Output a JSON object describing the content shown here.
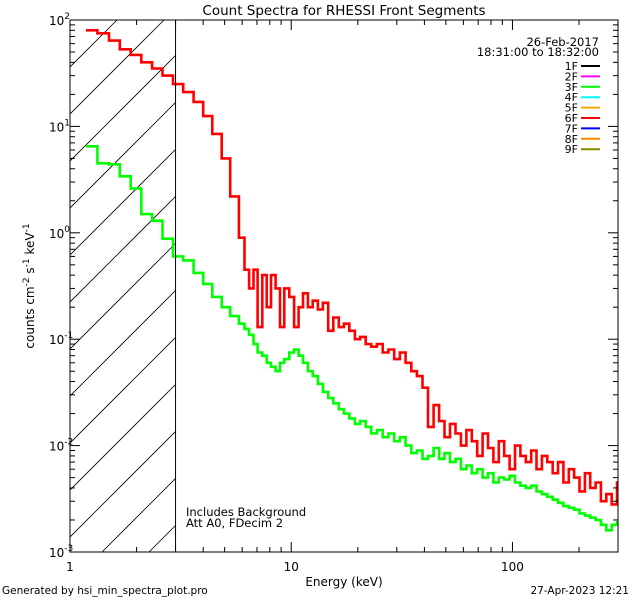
{
  "chart_data": {
    "type": "line",
    "title": "Count Spectra for RHESSI Front Segments",
    "xlabel": "Energy (keV)",
    "ylabel_parts": [
      "counts cm",
      "-2",
      " s",
      "-1",
      " keV",
      "-1"
    ],
    "xscale": "log",
    "yscale": "log",
    "xlim": [
      1,
      300
    ],
    "ylim": [
      0.001,
      100
    ],
    "x_ticks": [
      {
        "v": 1,
        "label": "1"
      },
      {
        "v": 10,
        "label": "10"
      },
      {
        "v": 100,
        "label": "100"
      }
    ],
    "y_ticks": [
      {
        "v": 0.001,
        "base": "10",
        "exp": "-3"
      },
      {
        "v": 0.01,
        "base": "10",
        "exp": "-2"
      },
      {
        "v": 0.1,
        "base": "10",
        "exp": "-1"
      },
      {
        "v": 1,
        "base": "10",
        "exp": "0"
      },
      {
        "v": 10,
        "base": "10",
        "exp": "1"
      },
      {
        "v": 100,
        "base": "10",
        "exp": "2"
      }
    ],
    "date": "26-Feb-2017",
    "time_range": "18:31:00 to 18:32:00",
    "annotations": [
      "Includes Background",
      "Att A0, FDecim 2"
    ],
    "threshold_energy": 3,
    "hatch_range": [
      1,
      3
    ],
    "legend": [
      {
        "label": "1F",
        "color": "#000000"
      },
      {
        "label": "2F",
        "color": "#ff00ff"
      },
      {
        "label": "3F",
        "color": "#00ff00"
      },
      {
        "label": "4F",
        "color": "#00ffff"
      },
      {
        "label": "5F",
        "color": "#ffaa00"
      },
      {
        "label": "6F",
        "color": "#ff0000"
      },
      {
        "label": "7F",
        "color": "#0000ff"
      },
      {
        "label": "8F",
        "color": "#ff8800"
      },
      {
        "label": "9F",
        "color": "#888800"
      }
    ],
    "series": [
      {
        "name": "6F",
        "color": "#ff0000",
        "steps": [
          [
            1.18,
            80
          ],
          [
            1.33,
            75
          ],
          [
            1.5,
            64
          ],
          [
            1.68,
            53
          ],
          [
            1.88,
            47
          ],
          [
            2.1,
            40
          ],
          [
            2.35,
            35
          ],
          [
            2.62,
            30
          ],
          [
            2.92,
            25
          ],
          [
            3.25,
            21
          ],
          [
            3.62,
            17
          ],
          [
            4.0,
            12.5
          ],
          [
            4.4,
            8.5
          ],
          [
            4.85,
            5
          ],
          [
            5.3,
            2.2
          ],
          [
            5.8,
            0.9
          ],
          [
            6.15,
            0.45
          ],
          [
            6.45,
            0.3
          ],
          [
            6.75,
            0.45
          ],
          [
            7.05,
            0.13
          ],
          [
            7.4,
            0.4
          ],
          [
            7.75,
            0.2
          ],
          [
            8.1,
            0.4
          ],
          [
            8.5,
            0.3
          ],
          [
            8.9,
            0.13
          ],
          [
            9.3,
            0.3
          ],
          [
            9.8,
            0.25
          ],
          [
            10.3,
            0.13
          ],
          [
            10.8,
            0.2
          ],
          [
            11.3,
            0.27
          ],
          [
            11.9,
            0.2
          ],
          [
            12.5,
            0.23
          ],
          [
            13.2,
            0.19
          ],
          [
            13.9,
            0.22
          ],
          [
            14.7,
            0.12
          ],
          [
            15.5,
            0.16
          ],
          [
            16.4,
            0.13
          ],
          [
            17.3,
            0.14
          ],
          [
            18.3,
            0.12
          ],
          [
            19.4,
            0.1
          ],
          [
            20.5,
            0.105
          ],
          [
            21.7,
            0.09
          ],
          [
            23,
            0.085
          ],
          [
            24.4,
            0.09
          ],
          [
            25.9,
            0.075
          ],
          [
            27.5,
            0.08
          ],
          [
            29.2,
            0.065
          ],
          [
            31,
            0.075
          ],
          [
            32.9,
            0.06
          ],
          [
            34.9,
            0.05
          ],
          [
            37,
            0.045
          ],
          [
            39.2,
            0.035
          ],
          [
            41.5,
            0.015
          ],
          [
            44,
            0.024
          ],
          [
            46.6,
            0.017
          ],
          [
            49.3,
            0.012
          ],
          [
            52.2,
            0.016
          ],
          [
            55.3,
            0.013
          ],
          [
            58.5,
            0.01
          ],
          [
            61.9,
            0.014
          ],
          [
            65.5,
            0.011
          ],
          [
            69.3,
            0.008
          ],
          [
            73.3,
            0.013
          ],
          [
            77.5,
            0.0095
          ],
          [
            82,
            0.007
          ],
          [
            86.8,
            0.011
          ],
          [
            91.8,
            0.008
          ],
          [
            97.1,
            0.006
          ],
          [
            102.7,
            0.01
          ],
          [
            108.6,
            0.008
          ],
          [
            114.9,
            0.007
          ],
          [
            121.5,
            0.009
          ],
          [
            128.5,
            0.006
          ],
          [
            135.9,
            0.008
          ],
          [
            143.7,
            0.007
          ],
          [
            152,
            0.0055
          ],
          [
            160.7,
            0.007
          ],
          [
            170,
            0.0045
          ],
          [
            179.7,
            0.006
          ],
          [
            190,
            0.005
          ],
          [
            201,
            0.0037
          ],
          [
            212.5,
            0.0055
          ],
          [
            224.7,
            0.004
          ],
          [
            237.6,
            0.0045
          ],
          [
            251.2,
            0.003
          ],
          [
            265.6,
            0.0035
          ],
          [
            280.9,
            0.0028
          ],
          [
            297,
            0.0045
          ]
        ]
      },
      {
        "name": "3F",
        "color": "#00ff00",
        "steps": [
          [
            1.18,
            6.5
          ],
          [
            1.33,
            4.5
          ],
          [
            1.5,
            4.4
          ],
          [
            1.68,
            3.4
          ],
          [
            1.88,
            2.6
          ],
          [
            2.1,
            1.5
          ],
          [
            2.35,
            1.3
          ],
          [
            2.62,
            0.88
          ],
          [
            2.92,
            0.6
          ],
          [
            3.25,
            0.55
          ],
          [
            3.62,
            0.42
          ],
          [
            4.0,
            0.33
          ],
          [
            4.4,
            0.25
          ],
          [
            4.85,
            0.2
          ],
          [
            5.3,
            0.165
          ],
          [
            5.8,
            0.14
          ],
          [
            6.15,
            0.125
          ],
          [
            6.45,
            0.11
          ],
          [
            6.75,
            0.09
          ],
          [
            7.05,
            0.075
          ],
          [
            7.4,
            0.07
          ],
          [
            7.75,
            0.06
          ],
          [
            8.1,
            0.055
          ],
          [
            8.5,
            0.05
          ],
          [
            8.9,
            0.06
          ],
          [
            9.3,
            0.065
          ],
          [
            9.8,
            0.075
          ],
          [
            10.3,
            0.08
          ],
          [
            10.8,
            0.07
          ],
          [
            11.3,
            0.06
          ],
          [
            11.9,
            0.05
          ],
          [
            12.5,
            0.045
          ],
          [
            13.2,
            0.038
          ],
          [
            13.9,
            0.032
          ],
          [
            14.7,
            0.028
          ],
          [
            15.5,
            0.025
          ],
          [
            16.4,
            0.022
          ],
          [
            17.3,
            0.02
          ],
          [
            18.3,
            0.018
          ],
          [
            19.4,
            0.016
          ],
          [
            20.5,
            0.017
          ],
          [
            21.7,
            0.015
          ],
          [
            23,
            0.013
          ],
          [
            24.4,
            0.014
          ],
          [
            25.9,
            0.012
          ],
          [
            27.5,
            0.013
          ],
          [
            29.2,
            0.011
          ],
          [
            31,
            0.012
          ],
          [
            32.9,
            0.01
          ],
          [
            34.9,
            0.0085
          ],
          [
            37,
            0.009
          ],
          [
            39.2,
            0.0075
          ],
          [
            41.5,
            0.008
          ],
          [
            44,
            0.0095
          ],
          [
            46.6,
            0.0075
          ],
          [
            49.3,
            0.0085
          ],
          [
            52.2,
            0.007
          ],
          [
            55.3,
            0.0075
          ],
          [
            58.5,
            0.006
          ],
          [
            61.9,
            0.0065
          ],
          [
            65.5,
            0.0055
          ],
          [
            69.3,
            0.006
          ],
          [
            73.3,
            0.005
          ],
          [
            77.5,
            0.0055
          ],
          [
            82,
            0.0045
          ],
          [
            86.8,
            0.005
          ],
          [
            91.8,
            0.0048
          ],
          [
            97.1,
            0.0052
          ],
          [
            102.7,
            0.0045
          ],
          [
            108.6,
            0.0042
          ],
          [
            114.9,
            0.004
          ],
          [
            121.5,
            0.0042
          ],
          [
            128.5,
            0.0037
          ],
          [
            135.9,
            0.0035
          ],
          [
            143.7,
            0.0033
          ],
          [
            152,
            0.0031
          ],
          [
            160.7,
            0.0029
          ],
          [
            170,
            0.0027
          ],
          [
            179.7,
            0.0026
          ],
          [
            190,
            0.0025
          ],
          [
            201,
            0.0023
          ],
          [
            212.5,
            0.0022
          ],
          [
            224.7,
            0.0021
          ],
          [
            237.6,
            0.002
          ],
          [
            251.2,
            0.0018
          ],
          [
            265.6,
            0.0016
          ],
          [
            280.9,
            0.0018
          ],
          [
            297,
            0.0019
          ]
        ]
      }
    ]
  },
  "footer": {
    "generated_by": "Generated by hsi_min_spectra_plot.pro",
    "timestamp": "27-Apr-2023 12:21"
  }
}
